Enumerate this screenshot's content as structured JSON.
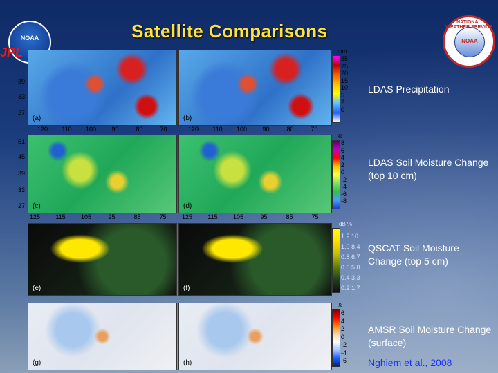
{
  "title": "Satellite Comparisons",
  "logos": {
    "noaa": "NOAA",
    "jpl": "JPL",
    "nws_ring": "NATIONAL WEATHER SERVICE",
    "nws_center": "NOAA"
  },
  "rows": [
    {
      "label": "LDAS Precipitation",
      "unit": "mm",
      "ticks": [
        "35",
        "25",
        "20",
        "15",
        "10",
        "5",
        "2",
        "0"
      ],
      "maps": [
        "(a)",
        "(b)"
      ],
      "lat": [
        "39",
        "33",
        "27"
      ],
      "lon": [
        "120",
        "110",
        "100",
        "90",
        "80",
        "70",
        "120",
        "110",
        "100",
        "90",
        "80",
        "70"
      ]
    },
    {
      "label": "LDAS Soil Moisture Change (top 10 cm)",
      "unit": "%",
      "ticks": [
        "8",
        "6",
        "4",
        "2",
        "0",
        "-2",
        "-4",
        "-6",
        "-8"
      ],
      "maps": [
        "(c)",
        "(d)"
      ],
      "lat": [
        "51",
        "45",
        "39",
        "33",
        "27"
      ],
      "lon": [
        "125",
        "115",
        "105",
        "95",
        "85",
        "75",
        "125",
        "115",
        "105",
        "95",
        "85",
        "75"
      ]
    },
    {
      "label": "QSCAT Soil Moisture Change (top 5 cm)",
      "unit": "dB  %",
      "ticks": [
        "1.2 10.",
        "1.0 8.4",
        "0.8 6.7",
        "0.6 5.0",
        "0.4 3.3",
        "0.2 1.7"
      ],
      "maps": [
        "(e)",
        "(f)"
      ]
    },
    {
      "label": "AMSR Soil Moisture Change (surface)",
      "unit": "%",
      "ticks": [
        "6",
        "4",
        "2",
        "0",
        "-2",
        "-4",
        "-6"
      ],
      "maps": [
        "(g)",
        "(h)"
      ]
    }
  ],
  "citation": "Nghiem et al., 2008"
}
